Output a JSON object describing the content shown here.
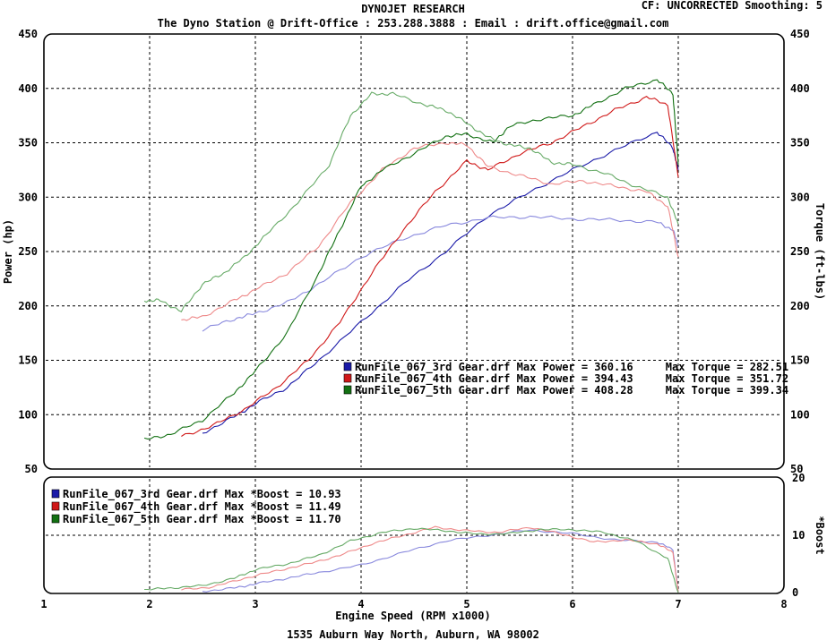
{
  "header": {
    "title": "DYNOJET RESEARCH",
    "subtitle": "The Dyno Station @ Drift-Office : 253.288.3888 : Email : drift.office@gmail.com",
    "settings": "CF: UNCORRECTED  Smoothing: 5"
  },
  "footer": {
    "address": "1535 Auburn Way North, Auburn, WA 98002"
  },
  "colors": {
    "run3": "#1a1aa8",
    "run4": "#d01818",
    "run5": "#127012",
    "run3_light": "#8888dd",
    "run4_light": "#ee8888",
    "run5_light": "#66aa66"
  },
  "chart_data": [
    {
      "type": "line",
      "xlabel": "Engine Speed (RPM x1000)",
      "ylabel": "Power (hp)",
      "y2label": "Torque (ft-lbs)",
      "xlim": [
        1,
        8
      ],
      "ylim": [
        50,
        450
      ],
      "xticks": [
        "1",
        "2",
        "3",
        "4",
        "5",
        "6",
        "7",
        "8"
      ],
      "yticks": [
        "50",
        "100",
        "150",
        "200",
        "250",
        "300",
        "350",
        "400",
        "450"
      ],
      "grid": true,
      "legend": [
        "RunFile_067_3rd Gear.drf Max Power = 360.16     Max Torque = 282.51",
        "RunFile_067_4th Gear.drf Max Power = 394.43     Max Torque = 351.72",
        "RunFile_067_5th Gear.drf Max Power = 408.28     Max Torque = 399.34"
      ],
      "series": [
        {
          "name": "RunFile_067_3rd Gear.drf",
          "metric": "Power",
          "color": "#1a1aa8",
          "x": [
            2.5,
            2.8,
            3.0,
            3.3,
            3.6,
            4.0,
            4.4,
            4.8,
            5.2,
            5.6,
            6.0,
            6.4,
            6.8,
            6.95,
            7.0
          ],
          "y": [
            83,
            98,
            110,
            125,
            150,
            185,
            220,
            250,
            283,
            305,
            325,
            343,
            360,
            345,
            325
          ]
        },
        {
          "name": "RunFile_067_3rd Gear.drf",
          "metric": "Torque",
          "color": "#8888dd",
          "x": [
            2.5,
            2.8,
            3.0,
            3.3,
            3.6,
            4.0,
            4.4,
            4.8,
            5.2,
            5.6,
            6.0,
            6.4,
            6.8,
            6.95,
            7.0
          ],
          "y": [
            178,
            188,
            193,
            203,
            220,
            245,
            262,
            274,
            281,
            282,
            280,
            279,
            277,
            270,
            255
          ]
        },
        {
          "name": "RunFile_067_4th Gear.drf",
          "metric": "Power",
          "color": "#d01818",
          "x": [
            2.3,
            2.6,
            2.9,
            3.2,
            3.5,
            3.8,
            4.1,
            4.4,
            4.7,
            5.0,
            5.2,
            5.5,
            5.8,
            6.1,
            6.4,
            6.7,
            6.9,
            7.0
          ],
          "y": [
            80,
            90,
            105,
            125,
            150,
            185,
            230,
            270,
            305,
            333,
            325,
            340,
            350,
            365,
            380,
            392,
            385,
            318
          ]
        },
        {
          "name": "RunFile_067_4th Gear.drf",
          "metric": "Torque",
          "color": "#ee8888",
          "x": [
            2.3,
            2.5,
            2.8,
            3.0,
            3.3,
            3.6,
            3.9,
            4.2,
            4.5,
            4.8,
            5.0,
            5.2,
            5.5,
            5.8,
            6.1,
            6.4,
            6.7,
            6.9,
            7.0
          ],
          "y": [
            187,
            190,
            205,
            215,
            230,
            255,
            295,
            325,
            345,
            350,
            348,
            328,
            320,
            312,
            315,
            310,
            305,
            292,
            245
          ]
        },
        {
          "name": "RunFile_067_5th Gear.drf",
          "metric": "Power",
          "color": "#127012",
          "x": [
            1.95,
            2.2,
            2.5,
            2.8,
            3.0,
            3.3,
            3.6,
            3.8,
            4.0,
            4.2,
            4.5,
            4.8,
            5.0,
            5.25,
            5.4,
            5.7,
            6.0,
            6.2,
            6.5,
            6.8,
            6.95,
            7.0
          ],
          "y": [
            77,
            82,
            95,
            120,
            140,
            175,
            230,
            270,
            310,
            325,
            340,
            356,
            358,
            350,
            365,
            372,
            375,
            385,
            400,
            408,
            395,
            330
          ]
        },
        {
          "name": "RunFile_067_5th Gear.drf",
          "metric": "Torque",
          "color": "#66aa66",
          "x": [
            1.95,
            2.1,
            2.3,
            2.5,
            2.7,
            2.9,
            3.1,
            3.4,
            3.7,
            3.9,
            4.1,
            4.3,
            4.6,
            4.8,
            5.0,
            5.2,
            5.4,
            5.6,
            5.8,
            6.0,
            6.3,
            6.6,
            6.9,
            7.0
          ],
          "y": [
            205,
            205,
            195,
            220,
            230,
            245,
            265,
            295,
            330,
            375,
            395,
            395,
            385,
            380,
            368,
            355,
            348,
            345,
            332,
            330,
            322,
            310,
            300,
            275
          ]
        }
      ]
    },
    {
      "type": "line",
      "xlabel": "Engine Speed (RPM x1000)",
      "ylabel": "*Boost",
      "xlim": [
        1,
        8
      ],
      "ylim": [
        0,
        20
      ],
      "yticks": [
        "0",
        "10",
        "20"
      ],
      "grid": true,
      "legend": [
        "RunFile_067_3rd Gear.drf Max *Boost = 10.93",
        "RunFile_067_4th Gear.drf Max *Boost = 11.49",
        "RunFile_067_5th Gear.drf Max *Boost = 11.70"
      ],
      "series": [
        {
          "name": "RunFile_067_3rd Gear.drf",
          "color": "#8888dd",
          "x": [
            2.5,
            2.8,
            3.0,
            3.3,
            3.6,
            4.0,
            4.4,
            4.8,
            5.2,
            5.6,
            6.0,
            6.4,
            6.8,
            6.95,
            7.0
          ],
          "y": [
            0.2,
            0.8,
            1.5,
            2.5,
            3.5,
            4.8,
            7.0,
            9.0,
            10.0,
            10.9,
            10.3,
            9.2,
            8.8,
            7.5,
            0.0
          ]
        },
        {
          "name": "RunFile_067_4th Gear.drf",
          "color": "#ee8888",
          "x": [
            2.3,
            2.6,
            2.9,
            3.2,
            3.5,
            3.8,
            4.1,
            4.4,
            4.7,
            5.0,
            5.3,
            5.6,
            5.9,
            6.2,
            6.5,
            6.8,
            6.95,
            7.0
          ],
          "y": [
            0.5,
            1.0,
            2.5,
            3.8,
            5.0,
            6.5,
            8.5,
            10.0,
            11.4,
            10.8,
            10.5,
            11.4,
            10.2,
            8.8,
            9.2,
            8.5,
            7.0,
            0.0
          ]
        },
        {
          "name": "RunFile_067_5th Gear.drf",
          "color": "#66aa66",
          "x": [
            1.95,
            2.2,
            2.5,
            2.8,
            3.0,
            3.3,
            3.6,
            3.9,
            4.2,
            4.5,
            4.8,
            5.1,
            5.4,
            5.7,
            6.0,
            6.3,
            6.6,
            6.9,
            7.0
          ],
          "y": [
            0.5,
            0.8,
            1.2,
            2.5,
            4.0,
            5.0,
            6.5,
            9.0,
            10.5,
            11.2,
            10.8,
            10.2,
            10.3,
            11.0,
            11.0,
            10.5,
            9.0,
            6.0,
            0.0
          ]
        }
      ]
    }
  ]
}
